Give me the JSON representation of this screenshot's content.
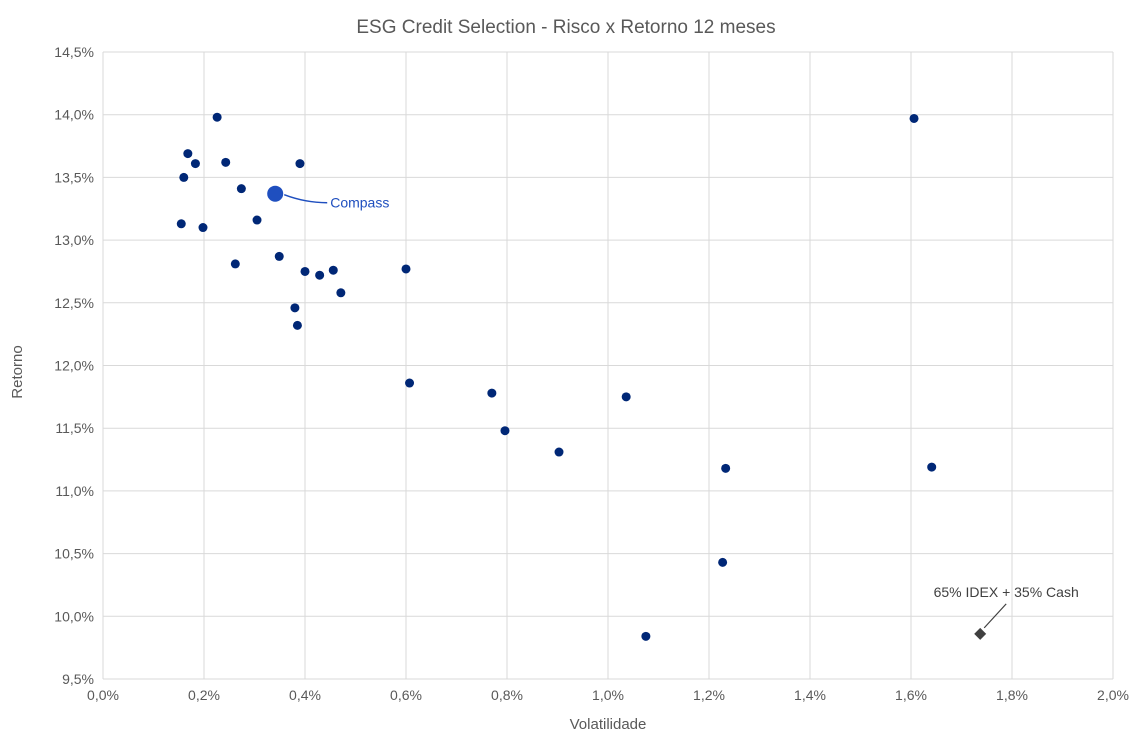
{
  "chart_data": {
    "type": "scatter",
    "title": "ESG Credit Selection - Risco x Retorno 12 meses",
    "xlabel": "Volatilidade",
    "ylabel": "Retorno",
    "xlim": [
      0.0,
      2.0
    ],
    "ylim": [
      9.5,
      14.5
    ],
    "x_unit": "%",
    "y_unit": "%",
    "x_ticks": [
      "0,0%",
      "0,2%",
      "0,4%",
      "0,6%",
      "0,8%",
      "1,0%",
      "1,2%",
      "1,4%",
      "1,6%",
      "1,8%",
      "2,0%"
    ],
    "y_ticks": [
      "9,5%",
      "10,0%",
      "10,5%",
      "11,0%",
      "11,5%",
      "12,0%",
      "12,5%",
      "13,0%",
      "13,5%",
      "14,0%",
      "14,5%"
    ],
    "x_tick_values": [
      0.0,
      0.2,
      0.4,
      0.6,
      0.8,
      1.0,
      1.2,
      1.4,
      1.6,
      1.8,
      2.0
    ],
    "y_tick_values": [
      9.5,
      10.0,
      10.5,
      11.0,
      11.5,
      12.0,
      12.5,
      13.0,
      13.5,
      14.0,
      14.5
    ],
    "grid": true,
    "legend": "none",
    "colors": {
      "points": "#002776",
      "highlight": "#1f4fbf",
      "benchmark": "#404040",
      "grid": "#d9d9d9",
      "text": "#595959"
    },
    "series": [
      {
        "points": [
          {
            "x": 0.226,
            "y": 13.98
          },
          {
            "x": 0.168,
            "y": 13.69
          },
          {
            "x": 0.183,
            "y": 13.61
          },
          {
            "x": 0.243,
            "y": 13.62
          },
          {
            "x": 0.39,
            "y": 13.61
          },
          {
            "x": 0.16,
            "y": 13.5
          },
          {
            "x": 0.274,
            "y": 13.41
          },
          {
            "x": 0.305,
            "y": 13.16
          },
          {
            "x": 0.155,
            "y": 13.13
          },
          {
            "x": 0.198,
            "y": 13.1
          },
          {
            "x": 0.349,
            "y": 12.87
          },
          {
            "x": 0.262,
            "y": 12.81
          },
          {
            "x": 0.4,
            "y": 12.75
          },
          {
            "x": 0.429,
            "y": 12.72
          },
          {
            "x": 0.456,
            "y": 12.76
          },
          {
            "x": 0.6,
            "y": 12.77
          },
          {
            "x": 0.471,
            "y": 12.58
          },
          {
            "x": 0.38,
            "y": 12.46
          },
          {
            "x": 0.385,
            "y": 12.32
          },
          {
            "x": 0.607,
            "y": 11.86
          },
          {
            "x": 0.77,
            "y": 11.78
          },
          {
            "x": 1.036,
            "y": 11.75
          },
          {
            "x": 0.796,
            "y": 11.48
          },
          {
            "x": 0.903,
            "y": 11.31
          },
          {
            "x": 1.233,
            "y": 11.18
          },
          {
            "x": 1.641,
            "y": 11.19
          },
          {
            "x": 1.606,
            "y": 13.97
          },
          {
            "x": 1.227,
            "y": 10.43
          },
          {
            "x": 1.075,
            "y": 9.84
          }
        ]
      },
      {
        "name": "Compass",
        "points": [
          {
            "x": 0.341,
            "y": 13.37
          }
        ]
      },
      {
        "name": "65% IDEX + 35% Cash",
        "marker": "diamond",
        "points": [
          {
            "x": 1.737,
            "y": 9.86
          }
        ]
      }
    ]
  }
}
